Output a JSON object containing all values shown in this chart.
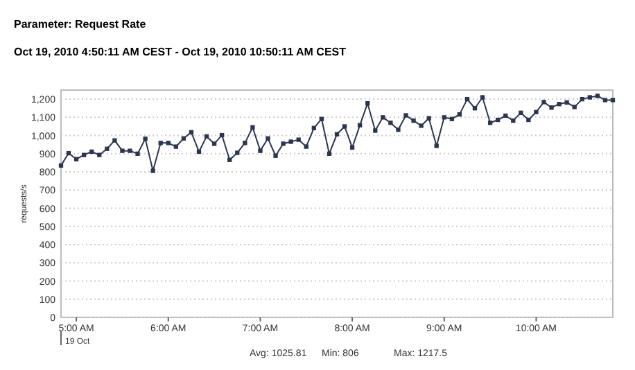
{
  "chart_data": {
    "type": "line",
    "title": "Parameter: Request Rate",
    "subtitle": "Oct 19, 2010 4:50:11 AM CEST - Oct 19, 2010 10:50:11 AM CEST",
    "ylabel": "requests/s",
    "x": [
      4.8333,
      4.9167,
      5,
      5.0833,
      5.1667,
      5.25,
      5.3333,
      5.4167,
      5.5,
      5.5833,
      5.6667,
      5.75,
      5.8333,
      5.9167,
      6,
      6.0833,
      6.1667,
      6.25,
      6.3333,
      6.4167,
      6.5,
      6.5833,
      6.6667,
      6.75,
      6.8333,
      6.9167,
      7,
      7.0833,
      7.1667,
      7.25,
      7.3333,
      7.4167,
      7.5,
      7.5833,
      7.6667,
      7.75,
      7.8333,
      7.9167,
      8,
      8.0833,
      8.1667,
      8.25,
      8.3333,
      8.4167,
      8.5,
      8.5833,
      8.6667,
      8.75,
      8.8333,
      8.9167,
      9,
      9.0833,
      9.1667,
      9.25,
      9.3333,
      9.4167,
      9.5,
      9.5833,
      9.6667,
      9.75,
      9.8333,
      9.9167,
      10,
      10.0833,
      10.1667,
      10.25,
      10.3333,
      10.4167,
      10.5,
      10.5833,
      10.6667,
      10.75,
      10.8333
    ],
    "series": [
      {
        "color": "#2a3550",
        "values": [
          835,
          903,
          870,
          893,
          911,
          893,
          927,
          973,
          916,
          916,
          900,
          982,
          806,
          959,
          959,
          939,
          984,
          1018,
          911,
          995,
          955,
          1002,
          866,
          905,
          959,
          1045,
          916,
          984,
          889,
          955,
          966,
          977,
          939,
          1041,
          1091,
          900,
          1007,
          1050,
          934,
          1057,
          1177,
          1027,
          1100,
          1070,
          1032,
          1111,
          1082,
          1054,
          1095,
          943,
          1100,
          1091,
          1116,
          1200,
          1150,
          1210,
          1070,
          1086,
          1109,
          1082,
          1125,
          1086,
          1129,
          1184,
          1154,
          1173,
          1182,
          1157,
          1200,
          1210,
          1218,
          1195,
          1195
        ]
      }
    ],
    "xlim": [
      4.8333,
      10.8333
    ],
    "xticks": [
      {
        "value": 5,
        "label": "5:00 AM"
      },
      {
        "value": 6,
        "label": "6:00 AM"
      },
      {
        "value": 7,
        "label": "7:00 AM"
      },
      {
        "value": 8,
        "label": "8:00 AM"
      },
      {
        "value": 9,
        "label": "9:00 AM"
      },
      {
        "value": 10,
        "label": "10:00 AM"
      }
    ],
    "ylim": [
      0,
      1250
    ],
    "yticks": [
      0,
      100,
      200,
      300,
      400,
      500,
      600,
      700,
      800,
      900,
      {
        "value": 1000,
        "label": "1,000"
      },
      {
        "value": 1100,
        "label": "1,100"
      },
      {
        "value": 1200,
        "label": "1,200"
      }
    ],
    "grid": "y",
    "marker": "square",
    "line_style": "solid",
    "annotations": [
      "19 Oct",
      "Avg: 1025.81",
      "Min: 806",
      "Max: 1217.5"
    ]
  }
}
